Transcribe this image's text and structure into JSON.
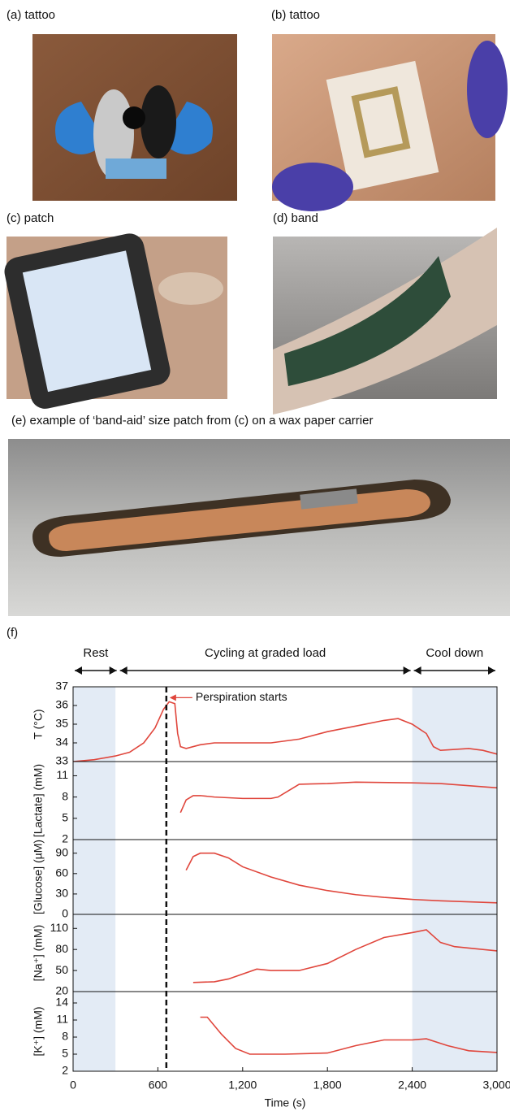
{
  "figure": {
    "panels": [
      {
        "label": "(a) tattoo"
      },
      {
        "label": "(b) tattoo"
      },
      {
        "label": "(c) patch"
      },
      {
        "label": "(d) band"
      },
      {
        "label": "(e) example of ‘band-aid’ size patch from (c) on a wax paper carrier"
      }
    ]
  },
  "chart_data": [
    {
      "type": "line",
      "label": "(f)",
      "color": "#e0463c",
      "phases": [
        {
          "name": "Rest",
          "range": [
            0,
            320
          ]
        },
        {
          "name": "Cycling at graded load",
          "range": [
            320,
            2400
          ]
        },
        {
          "name": "Cool down",
          "range": [
            2400,
            3000
          ]
        }
      ],
      "annotation": {
        "text": "Perspiration starts",
        "x": 660,
        "y": 36.2
      },
      "shaded": [
        [
          0,
          300
        ],
        [
          2400,
          3000
        ]
      ],
      "ylabel": "T (°C)",
      "xlim": [
        0,
        3000
      ],
      "ylim": [
        33,
        37
      ],
      "yticks": [
        33,
        34,
        35,
        36,
        37
      ],
      "x": [
        0,
        150,
        300,
        400,
        500,
        580,
        640,
        680,
        720,
        740,
        760,
        800,
        900,
        1000,
        1200,
        1400,
        1600,
        1800,
        2000,
        2200,
        2300,
        2400,
        2500,
        2550,
        2600,
        2800,
        2900,
        3000
      ],
      "values": [
        33.0,
        33.1,
        33.3,
        33.5,
        34.0,
        34.8,
        35.8,
        36.2,
        36.1,
        34.5,
        33.8,
        33.7,
        33.9,
        34.0,
        34.0,
        34.0,
        34.2,
        34.6,
        34.9,
        35.2,
        35.3,
        35.0,
        34.5,
        33.8,
        33.6,
        33.7,
        33.6,
        33.4
      ]
    },
    {
      "type": "line",
      "color": "#e0463c",
      "shaded": [
        [
          0,
          300
        ],
        [
          2400,
          3000
        ]
      ],
      "ylabel": "[Lactate] (mM)",
      "xlim": [
        0,
        3000
      ],
      "ylim": [
        2,
        13
      ],
      "yticks": [
        2,
        5,
        8,
        11
      ],
      "x": [
        760,
        800,
        850,
        900,
        1000,
        1200,
        1400,
        1450,
        1550,
        1600,
        1800,
        2000,
        2400,
        2600,
        3000
      ],
      "values": [
        5.8,
        7.6,
        8.2,
        8.2,
        8.0,
        7.8,
        7.8,
        8.0,
        9.2,
        9.8,
        9.9,
        10.1,
        10.0,
        9.9,
        9.3
      ]
    },
    {
      "type": "line",
      "color": "#e0463c",
      "shaded": [
        [
          0,
          300
        ],
        [
          2400,
          3000
        ]
      ],
      "ylabel": "[Glucose] (µM)",
      "xlim": [
        0,
        3000
      ],
      "ylim": [
        0,
        110
      ],
      "yticks": [
        0,
        30,
        60,
        90
      ],
      "x": [
        800,
        850,
        900,
        1000,
        1100,
        1200,
        1400,
        1600,
        1800,
        2000,
        2200,
        2400,
        2600,
        3000
      ],
      "values": [
        65,
        85,
        90,
        90,
        83,
        70,
        55,
        43,
        35,
        29,
        25,
        22,
        20,
        17
      ]
    },
    {
      "type": "line",
      "color": "#e0463c",
      "shaded": [
        [
          0,
          300
        ],
        [
          2400,
          3000
        ]
      ],
      "ylabel": "[Na⁺] (mM)",
      "xlim": [
        0,
        3000
      ],
      "ylim": [
        20,
        130
      ],
      "yticks": [
        20,
        50,
        80,
        110
      ],
      "x": [
        850,
        1000,
        1100,
        1300,
        1400,
        1600,
        1800,
        2000,
        2200,
        2400,
        2500,
        2600,
        2700,
        2900,
        3000
      ],
      "values": [
        33,
        34,
        38,
        52,
        50,
        50,
        60,
        80,
        97,
        104,
        108,
        90,
        84,
        80,
        78
      ]
    },
    {
      "type": "line",
      "color": "#e0463c",
      "shaded": [
        [
          0,
          300
        ],
        [
          2400,
          3000
        ]
      ],
      "ylabel": "[K⁺] (mM)",
      "xlabel": "Time (s)",
      "xlim": [
        0,
        3000
      ],
      "ylim": [
        2,
        16
      ],
      "yticks": [
        2,
        5,
        8,
        11,
        14
      ],
      "xticks": [
        0,
        600,
        {
          "value": 1200,
          "label": "1,200"
        },
        {
          "value": 1800,
          "label": "1,800"
        },
        {
          "value": 2400,
          "label": "2,400"
        },
        {
          "value": 3000,
          "label": "3,000"
        }
      ],
      "x": [
        900,
        950,
        1050,
        1150,
        1250,
        1500,
        1800,
        2000,
        2200,
        2400,
        2500,
        2650,
        2800,
        3000
      ],
      "values": [
        11.5,
        11.5,
        8.5,
        6,
        5,
        5,
        5.2,
        6.5,
        7.5,
        7.5,
        7.7,
        6.5,
        5.6,
        5.3
      ]
    }
  ]
}
